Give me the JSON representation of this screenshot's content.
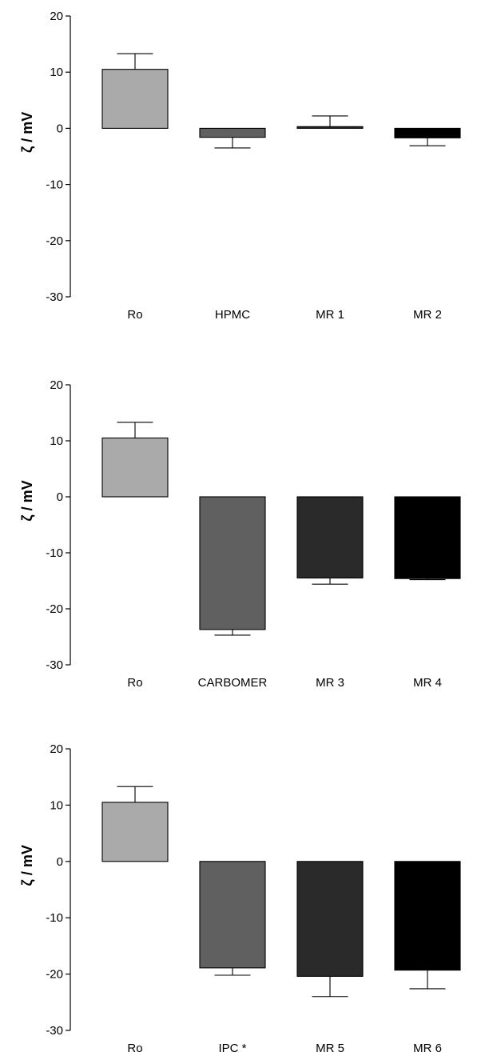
{
  "chart_data": [
    {
      "type": "bar",
      "ylabel": "ζ / mV",
      "ylim": [
        -30,
        20
      ],
      "yticks": [
        20,
        10,
        0,
        -10,
        -20,
        -30
      ],
      "categories": [
        "Ro",
        "HPMC",
        "MR 1",
        "MR 2"
      ],
      "values": [
        10.5,
        -1.6,
        0.3,
        -1.7
      ],
      "errors": [
        2.8,
        1.9,
        1.9,
        1.4
      ],
      "colors": [
        "#aaaaaa",
        "#606060",
        "#2a2a2a",
        "#000000"
      ]
    },
    {
      "type": "bar",
      "ylabel": "ζ / mV",
      "ylim": [
        -30,
        20
      ],
      "yticks": [
        20,
        10,
        0,
        -10,
        -20,
        -30
      ],
      "categories": [
        "Ro",
        "CARBOMER",
        "MR 3",
        "MR 4"
      ],
      "values": [
        10.5,
        -23.7,
        -14.5,
        -14.6
      ],
      "errors": [
        2.8,
        1.0,
        1.1,
        0.2
      ],
      "colors": [
        "#aaaaaa",
        "#606060",
        "#2a2a2a",
        "#000000"
      ]
    },
    {
      "type": "bar",
      "ylabel": "ζ / mV",
      "ylim": [
        -30,
        20
      ],
      "yticks": [
        20,
        10,
        0,
        -10,
        -20,
        -30
      ],
      "categories": [
        "Ro",
        "IPC *",
        "MR 5",
        "MR 6"
      ],
      "values": [
        10.5,
        -18.9,
        -20.4,
        -19.3
      ],
      "errors": [
        2.8,
        1.3,
        3.6,
        3.3
      ],
      "colors": [
        "#aaaaaa",
        "#606060",
        "#2a2a2a",
        "#000000"
      ]
    }
  ]
}
